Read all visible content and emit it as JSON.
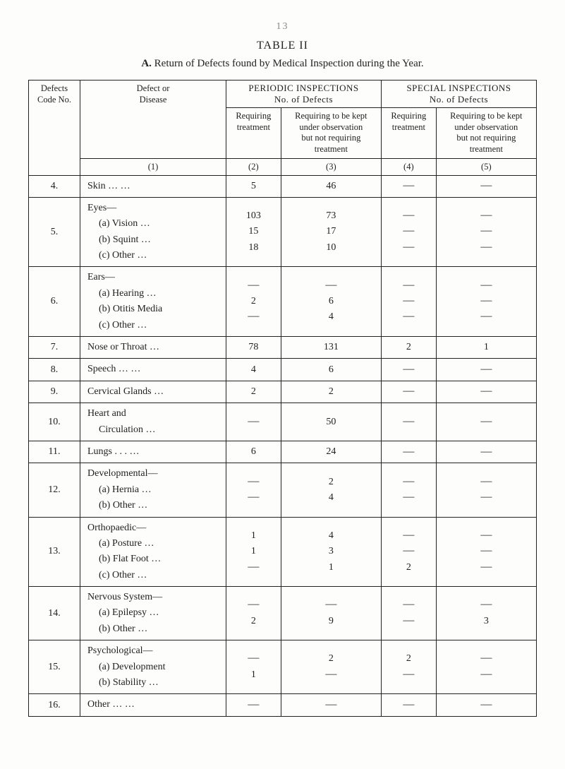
{
  "page_number": "13",
  "table_label": "TABLE II",
  "subtitle_lead": "A.",
  "subtitle_text": "Return of Defects found by Medical Inspection during the Year.",
  "headers": {
    "code": "Defects\nCode No.",
    "disease": "Defect or\nDisease",
    "periodic_group": "PERIODIC INSPECTIONS\nNo. of Defects",
    "special_group": "SPECIAL INSPECTIONS\nNo. of Defects",
    "req_treatment": "Requiring\ntreatment",
    "req_kept": "Requiring to be kept\nunder observation\nbut not requiring\ntreatment",
    "colnums": [
      "(1)",
      "(2)",
      "(3)",
      "(4)",
      "(5)"
    ]
  },
  "rows": [
    {
      "code": "4.",
      "disease": "Skin        …    …",
      "c2": [
        "5"
      ],
      "c3": [
        "46"
      ],
      "c4": [
        "—"
      ],
      "c5": [
        "—"
      ]
    },
    {
      "code": "5.",
      "disease": "Eyes—\n  (a) Vision    …\n  (b) Squint    …\n  (c) Other     …",
      "c2": [
        "103",
        "15",
        "18"
      ],
      "c3": [
        "73",
        "17",
        "10"
      ],
      "c4": [
        "—",
        "—",
        "—"
      ],
      "c5": [
        "—",
        "—",
        "—"
      ]
    },
    {
      "code": "6.",
      "disease": "Ears—\n  (a) Hearing   …\n  (b) Otitis Media\n  (c) Other     …",
      "c2": [
        "—",
        "2",
        "—"
      ],
      "c3": [
        "—",
        "6",
        "4"
      ],
      "c4": [
        "—",
        "—",
        "—"
      ],
      "c5": [
        "—",
        "—",
        "—"
      ]
    },
    {
      "code": "7.",
      "disease": "Nose or Throat …",
      "c2": [
        "78"
      ],
      "c3": [
        "131"
      ],
      "c4": [
        "2"
      ],
      "c5": [
        "1"
      ]
    },
    {
      "code": "8.",
      "disease": "Speech     …    …",
      "c2": [
        "4"
      ],
      "c3": [
        "6"
      ],
      "c4": [
        "—"
      ],
      "c5": [
        "—"
      ]
    },
    {
      "code": "9.",
      "disease": "Cervical Glands …",
      "c2": [
        "2"
      ],
      "c3": [
        "2"
      ],
      "c4": [
        "—"
      ],
      "c5": [
        "—"
      ]
    },
    {
      "code": "10.",
      "disease": "Heart and\n  Circulation …",
      "c2": [
        "—"
      ],
      "c3": [
        "50"
      ],
      "c4": [
        "—"
      ],
      "c5": [
        "—"
      ]
    },
    {
      "code": "11.",
      "disease": "Lungs     . . .    …",
      "c2": [
        "6"
      ],
      "c3": [
        "24"
      ],
      "c4": [
        "—"
      ],
      "c5": [
        "—"
      ]
    },
    {
      "code": "12.",
      "disease": "Developmental—\n  (a) Hernia    …\n  (b) Other     …",
      "c2": [
        "—",
        "—"
      ],
      "c3": [
        "2",
        "4"
      ],
      "c4": [
        "—",
        "—"
      ],
      "c5": [
        "—",
        "—"
      ]
    },
    {
      "code": "13.",
      "disease": "Orthopaedic—\n  (a) Posture    …\n  (b) Flat Foot  …\n  (c) Other      …",
      "c2": [
        "1",
        "1",
        "—"
      ],
      "c3": [
        "4",
        "3",
        "1"
      ],
      "c4": [
        "—",
        "—",
        "2"
      ],
      "c5": [
        "—",
        "—",
        "—"
      ]
    },
    {
      "code": "14.",
      "disease": "Nervous System—\n  (a) Epilepsy   …\n  (b) Other      …",
      "c2": [
        "—",
        "2"
      ],
      "c3": [
        "—",
        "9"
      ],
      "c4": [
        "—",
        "—"
      ],
      "c5": [
        "—",
        "3"
      ]
    },
    {
      "code": "15.",
      "disease": "Psychological—\n  (a) Development\n  (b) Stability   …",
      "c2": [
        "—",
        "1"
      ],
      "c3": [
        "2",
        "—"
      ],
      "c4": [
        "2",
        "—"
      ],
      "c5": [
        "—",
        "—"
      ]
    },
    {
      "code": "16.",
      "disease": "Other     …    …",
      "c2": [
        "—"
      ],
      "c3": [
        "—"
      ],
      "c4": [
        "—"
      ],
      "c5": [
        "—"
      ]
    }
  ]
}
